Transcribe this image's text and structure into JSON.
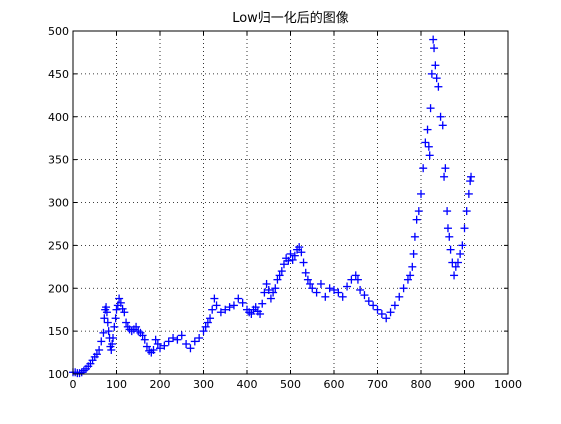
{
  "chart_data": {
    "type": "scatter",
    "title": "Low归一化后的图像",
    "xlabel": "",
    "ylabel": "",
    "xlim": [
      0,
      1000
    ],
    "ylim": [
      100,
      500
    ],
    "xticks": [
      0,
      100,
      200,
      300,
      400,
      500,
      600,
      700,
      800,
      900,
      1000
    ],
    "yticks": [
      100,
      150,
      200,
      250,
      300,
      350,
      400,
      450,
      500
    ],
    "xtick_labels": [
      "0",
      "100",
      "200",
      "300",
      "400",
      "500",
      "600",
      "700",
      "800",
      "900",
      "1000"
    ],
    "ytick_labels": [
      "100",
      "150",
      "200",
      "250",
      "300",
      "350",
      "400",
      "450",
      "500"
    ],
    "grid": true,
    "grid_style": "dotted",
    "marker": "+",
    "series_color": "#0000ff",
    "series": [
      {
        "x": [
          0,
          5,
          10,
          15,
          20,
          25,
          30,
          35,
          40,
          45,
          50,
          55,
          60,
          65,
          70,
          72,
          74,
          76,
          78,
          80,
          82,
          84,
          86,
          88,
          90,
          92,
          95,
          98,
          100,
          103,
          106,
          110,
          114,
          118,
          122,
          126,
          130,
          135,
          140,
          145,
          150,
          155,
          160,
          165,
          170,
          175,
          180,
          185,
          190,
          195,
          200,
          210,
          220,
          230,
          240,
          250,
          260,
          270,
          280,
          290,
          300,
          305,
          310,
          315,
          320,
          325,
          330,
          340,
          350,
          360,
          370,
          380,
          390,
          400,
          405,
          410,
          415,
          420,
          425,
          430,
          435,
          440,
          445,
          450,
          455,
          460,
          465,
          470,
          475,
          480,
          485,
          490,
          495,
          500,
          505,
          510,
          515,
          520,
          525,
          530,
          535,
          540,
          545,
          550,
          560,
          570,
          580,
          590,
          600,
          610,
          620,
          630,
          640,
          650,
          655,
          660,
          670,
          680,
          690,
          700,
          710,
          720,
          730,
          740,
          750,
          760,
          770,
          775,
          780,
          783,
          786,
          790,
          795,
          800,
          805,
          810,
          815,
          818,
          820,
          822,
          825,
          828,
          830,
          833,
          836,
          840,
          845,
          850,
          853,
          856,
          860,
          862,
          865,
          868,
          872,
          876,
          880,
          885,
          890,
          895,
          900,
          905,
          910,
          913,
          915
        ],
        "y": [
          102,
          102,
          101,
          101,
          102,
          104,
          106,
          109,
          112,
          116,
          120,
          123,
          128,
          138,
          148,
          165,
          175,
          178,
          172,
          160,
          150,
          142,
          132,
          128,
          135,
          142,
          155,
          165,
          175,
          180,
          188,
          183,
          176,
          172,
          160,
          155,
          152,
          150,
          152,
          155,
          150,
          148,
          145,
          140,
          132,
          127,
          125,
          128,
          140,
          135,
          130,
          133,
          138,
          142,
          140,
          145,
          135,
          130,
          138,
          142,
          150,
          155,
          160,
          165,
          175,
          188,
          180,
          172,
          175,
          178,
          180,
          188,
          183,
          175,
          172,
          170,
          175,
          178,
          173,
          170,
          182,
          195,
          205,
          198,
          188,
          195,
          200,
          210,
          215,
          220,
          228,
          235,
          232,
          240,
          233,
          238,
          245,
          248,
          242,
          230,
          218,
          210,
          205,
          200,
          195,
          205,
          190,
          200,
          198,
          195,
          190,
          202,
          210,
          215,
          210,
          198,
          192,
          185,
          180,
          175,
          170,
          165,
          172,
          180,
          190,
          200,
          210,
          215,
          225,
          240,
          260,
          280,
          290,
          310,
          340,
          370,
          385,
          365,
          355,
          410,
          450,
          490,
          480,
          460,
          445,
          435,
          400,
          390,
          330,
          340,
          290,
          270,
          260,
          245,
          230,
          215,
          225,
          230,
          240,
          250,
          270,
          290,
          310,
          325,
          330
        ]
      }
    ]
  }
}
